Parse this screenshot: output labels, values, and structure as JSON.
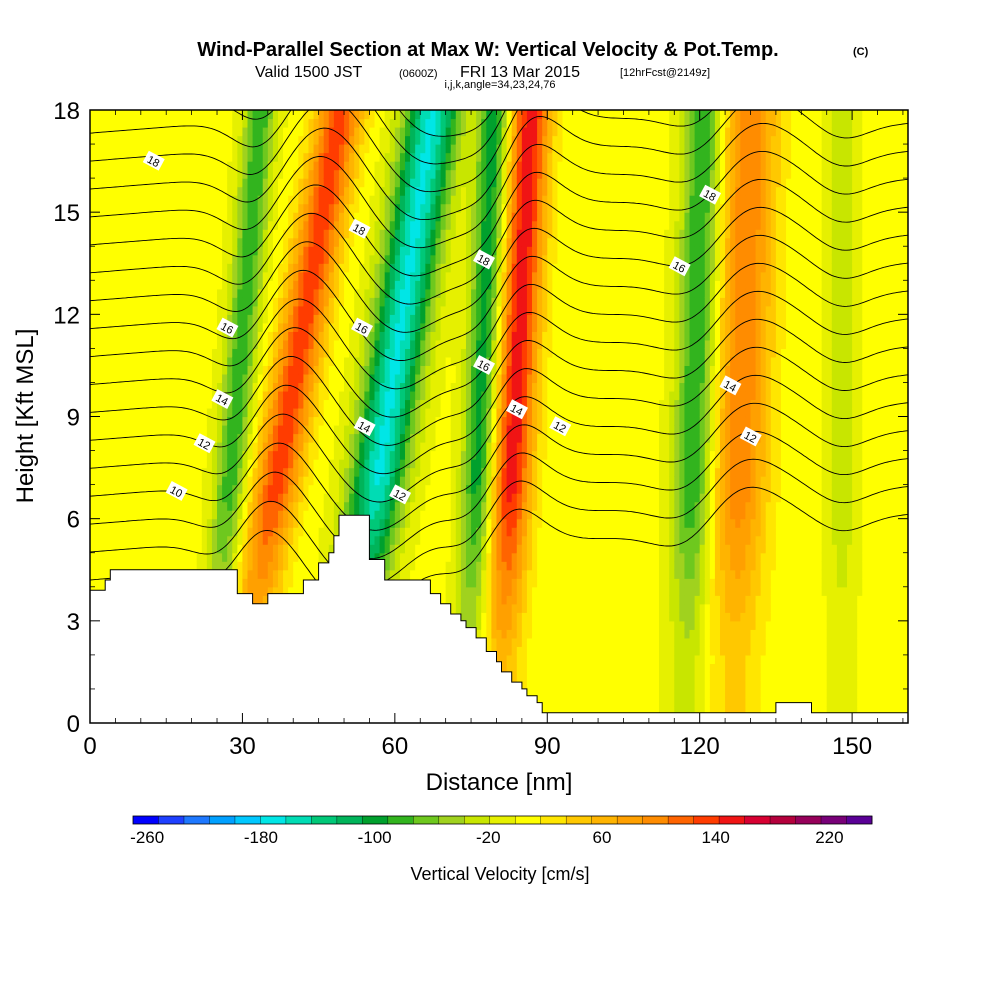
{
  "chart_data": {
    "type": "heatmap",
    "title": "Wind-Parallel Section at Max W: Vertical Velocity & Pot.Temp.",
    "title_mark": "(C)",
    "subtitle_parts": [
      "Valid 1500 JST",
      "(0600Z)",
      "FRI 13 Mar 2015",
      "[12hrFcst@2149z]"
    ],
    "subtitle2": "i,j,k,angle=34,23,24,76",
    "xlabel": "Distance [nm]",
    "ylabel": "Height [Kft MSL]",
    "xlim": [
      0,
      161
    ],
    "ylim": [
      0,
      18
    ],
    "xticks": [
      0,
      30,
      60,
      90,
      120,
      150
    ],
    "yticks": [
      0,
      3,
      6,
      9,
      12,
      15,
      18
    ],
    "colorbar": {
      "label": "Vertical Velocity [cm/s]",
      "range": [
        -270,
        250
      ],
      "tick_values": [
        -260,
        -180,
        -100,
        -20,
        60,
        140,
        220
      ],
      "tick_labels": [
        "-260",
        "-180",
        "-100",
        "-20",
        "60",
        "140",
        "220"
      ],
      "colors": [
        "#0000ff",
        "#1e40ff",
        "#1e78ff",
        "#00a0ff",
        "#00c8ff",
        "#00e6e6",
        "#00dcb4",
        "#00c878",
        "#00b45a",
        "#00a02d",
        "#32b41e",
        "#6ec81e",
        "#a0d21e",
        "#c8e600",
        "#e6f000",
        "#ffff00",
        "#ffe600",
        "#ffc800",
        "#ffb400",
        "#ffa000",
        "#ff8c00",
        "#ff6400",
        "#ff3c00",
        "#f01414",
        "#d70032",
        "#b4003c",
        "#96005a",
        "#780078",
        "#5a0096"
      ]
    },
    "updraft_bands": [
      {
        "x": 35.5,
        "lean": 1.15,
        "width": 4.5,
        "peak_w": 130
      },
      {
        "x": 82.5,
        "lean": 0.35,
        "width": 4.0,
        "peak_w": 150
      },
      {
        "x": 127.5,
        "lean": 0.2,
        "width": 5.5,
        "peak_w": 100
      }
    ],
    "downdraft_bands": [
      {
        "x": 27,
        "lean": 0.55,
        "width": 3.2,
        "peak_w": -90
      },
      {
        "x": 55.5,
        "lean": 1.0,
        "width": 5.5,
        "peak_w": -170
      },
      {
        "x": 76,
        "lean": 0.3,
        "width": 3.2,
        "peak_w": -110
      },
      {
        "x": 118.5,
        "lean": 0.2,
        "width": 4.0,
        "peak_w": -100
      },
      {
        "x": 148,
        "lean": 0.0,
        "width": 3.0,
        "peak_w": -40
      }
    ],
    "terrain": {
      "x": [
        0,
        3,
        3,
        4,
        4,
        10,
        10,
        29,
        29,
        32,
        32,
        35,
        35,
        42,
        42,
        45,
        45,
        47,
        47,
        48,
        48,
        49,
        49,
        55,
        55,
        58,
        58,
        67,
        67,
        69,
        69,
        71,
        71,
        73,
        73,
        74,
        74,
        76,
        76,
        78,
        78,
        80,
        80,
        81,
        81,
        83,
        83,
        85,
        85,
        86,
        86,
        88,
        88,
        89,
        89,
        91,
        91,
        93,
        93,
        95,
        95,
        135,
        135,
        142,
        142,
        161
      ],
      "height": [
        3.9,
        3.9,
        4.2,
        4.2,
        4.5,
        4.5,
        4.5,
        4.5,
        3.8,
        3.8,
        3.5,
        3.5,
        3.8,
        3.8,
        4.2,
        4.2,
        4.7,
        4.7,
        5.0,
        5.0,
        5.5,
        5.5,
        6.1,
        6.1,
        4.8,
        4.8,
        4.2,
        4.2,
        3.8,
        3.8,
        3.5,
        3.5,
        3.2,
        3.2,
        3.0,
        3.0,
        2.8,
        2.8,
        2.5,
        2.5,
        2.1,
        2.1,
        1.8,
        1.8,
        1.5,
        1.5,
        1.2,
        1.2,
        1.0,
        1.0,
        0.8,
        0.8,
        0.6,
        0.6,
        0.3,
        0.3,
        0.3,
        0.3,
        0.3,
        0.3,
        0.3,
        0.3,
        0.6,
        0.6,
        0.3,
        0.3
      ]
    },
    "theta_labels": [
      {
        "value": "10",
        "x": 17,
        "y": 6.8
      },
      {
        "value": "12",
        "x": 22.5,
        "y": 8.2
      },
      {
        "value": "12",
        "x": 61,
        "y": 6.7
      },
      {
        "value": "12",
        "x": 92.5,
        "y": 8.7
      },
      {
        "value": "12",
        "x": 130,
        "y": 8.4
      },
      {
        "value": "14",
        "x": 26,
        "y": 9.5
      },
      {
        "value": "14",
        "x": 54,
        "y": 8.7
      },
      {
        "value": "14",
        "x": 84,
        "y": 9.2
      },
      {
        "value": "14",
        "x": 126,
        "y": 9.9
      },
      {
        "value": "16",
        "x": 27,
        "y": 11.6
      },
      {
        "value": "16",
        "x": 53.5,
        "y": 11.6
      },
      {
        "value": "16",
        "x": 77.5,
        "y": 10.5
      },
      {
        "value": "16",
        "x": 116,
        "y": 13.4
      },
      {
        "value": "18",
        "x": 12.5,
        "y": 16.5
      },
      {
        "value": "18",
        "x": 53,
        "y": 14.5
      },
      {
        "value": "18",
        "x": 77.5,
        "y": 13.6
      },
      {
        "value": "18",
        "x": 122,
        "y": 15.5
      }
    ]
  }
}
